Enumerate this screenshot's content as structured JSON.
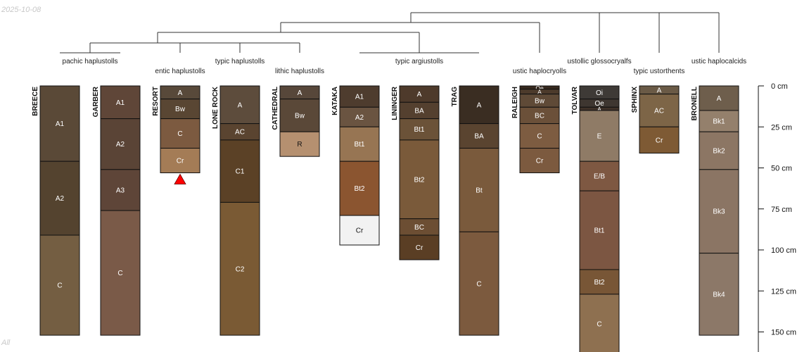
{
  "header_date": "2025-10-08",
  "footer_label": "All",
  "chart_data": {
    "type": "soil_profile_sketch",
    "depth_axis": {
      "units": "cm",
      "ticks": [
        0,
        25,
        50,
        75,
        100,
        125,
        150
      ],
      "tick_labels": [
        "0 cm",
        "25 cm",
        "50 cm",
        "75 cm",
        "100 cm",
        "125 cm",
        "150 cm"
      ],
      "max_depth": 150
    },
    "taxonomic_groups": [
      {
        "label": "pachic haplustolls"
      },
      {
        "label": "entic haplustolls"
      },
      {
        "label": "typic haplustolls"
      },
      {
        "label": "lithic haplustolls"
      },
      {
        "label": "typic argiustolls"
      },
      {
        "label": "ustic haplocryolls"
      },
      {
        "label": "ustollic glossocryalfs"
      },
      {
        "label": "typic ustorthents"
      },
      {
        "label": "ustic haplocalcids"
      }
    ],
    "profiles": [
      {
        "name": "BREECE",
        "group": "pachic haplustolls",
        "horizons": [
          {
            "name": "A1",
            "top": 0,
            "bottom": 46,
            "color": "#5a4937",
            "text": "light"
          },
          {
            "name": "A2",
            "top": 46,
            "bottom": 91,
            "color": "#54432f",
            "text": "light"
          },
          {
            "name": "C",
            "top": 91,
            "bottom": 152,
            "color": "#745e42",
            "text": "light"
          }
        ]
      },
      {
        "name": "GARBER",
        "group": "pachic haplustolls",
        "horizons": [
          {
            "name": "A1",
            "top": 0,
            "bottom": 20,
            "color": "#5f4638",
            "text": "light"
          },
          {
            "name": "A2",
            "top": 20,
            "bottom": 51,
            "color": "#5a4436",
            "text": "light"
          },
          {
            "name": "A3",
            "top": 51,
            "bottom": 76,
            "color": "#5e4538",
            "text": "light"
          },
          {
            "name": "C",
            "top": 76,
            "bottom": 152,
            "color": "#7a5a48",
            "text": "light"
          }
        ]
      },
      {
        "name": "RESORT",
        "group": "entic haplustolls",
        "marker": "red-triangle",
        "horizons": [
          {
            "name": "A",
            "top": 0,
            "bottom": 8,
            "color": "#58493a",
            "text": "light"
          },
          {
            "name": "Bw",
            "top": 8,
            "bottom": 20,
            "color": "#594633",
            "text": "light"
          },
          {
            "name": "C",
            "top": 20,
            "bottom": 38,
            "color": "#7c5a40",
            "text": "light"
          },
          {
            "name": "Cr",
            "top": 38,
            "bottom": 53,
            "color": "#a47c56",
            "text": "light"
          }
        ]
      },
      {
        "name": "LONE ROCK",
        "group": "typic haplustolls",
        "horizons": [
          {
            "name": "A",
            "top": 0,
            "bottom": 23,
            "color": "#5d4c3c",
            "text": "light"
          },
          {
            "name": "AC",
            "top": 23,
            "bottom": 33,
            "color": "#5a4430",
            "text": "light"
          },
          {
            "name": "C1",
            "top": 33,
            "bottom": 71,
            "color": "#5b4126",
            "text": "light"
          },
          {
            "name": "C2",
            "top": 71,
            "bottom": 152,
            "color": "#7a5a34",
            "text": "light"
          }
        ]
      },
      {
        "name": "CATHEDRAL",
        "group": "lithic haplustolls",
        "horizons": [
          {
            "name": "A",
            "top": 0,
            "bottom": 8,
            "color": "#57473a",
            "text": "light"
          },
          {
            "name": "Bw",
            "top": 8,
            "bottom": 28,
            "color": "#5a4838",
            "text": "light"
          },
          {
            "name": "R",
            "top": 28,
            "bottom": 43,
            "color": "#b59070",
            "text": "dark"
          }
        ]
      },
      {
        "name": "KATAKA",
        "group": "typic argiustolls",
        "horizons": [
          {
            "name": "A1",
            "top": 0,
            "bottom": 13,
            "color": "#4e3c2e",
            "text": "light"
          },
          {
            "name": "A2",
            "top": 13,
            "bottom": 25,
            "color": "#6a5441",
            "text": "light"
          },
          {
            "name": "Bt1",
            "top": 25,
            "bottom": 46,
            "color": "#977553",
            "text": "light"
          },
          {
            "name": "Bt2",
            "top": 46,
            "bottom": 79,
            "color": "#8b5530",
            "text": "light"
          },
          {
            "name": "Cr",
            "top": 79,
            "bottom": 97,
            "color": "#f2f2f2",
            "text": "dark"
          }
        ]
      },
      {
        "name": "LININGER",
        "group": "typic argiustolls",
        "horizons": [
          {
            "name": "A",
            "top": 0,
            "bottom": 10,
            "color": "#4e3a2b",
            "text": "light"
          },
          {
            "name": "BA",
            "top": 10,
            "bottom": 20,
            "color": "#54402f",
            "text": "light"
          },
          {
            "name": "Bt1",
            "top": 20,
            "bottom": 33,
            "color": "#6b5238",
            "text": "light"
          },
          {
            "name": "Bt2",
            "top": 33,
            "bottom": 81,
            "color": "#7a5a3a",
            "text": "light"
          },
          {
            "name": "BC",
            "top": 81,
            "bottom": 91,
            "color": "#6c4e33",
            "text": "light"
          },
          {
            "name": "Cr",
            "top": 91,
            "bottom": 106,
            "color": "#5a3e24",
            "text": "light"
          }
        ]
      },
      {
        "name": "TRAG",
        "group": "typic argiustolls",
        "horizons": [
          {
            "name": "A",
            "top": 0,
            "bottom": 23,
            "color": "#3a2d22",
            "text": "light"
          },
          {
            "name": "BA",
            "top": 23,
            "bottom": 38,
            "color": "#5a4430",
            "text": "light"
          },
          {
            "name": "Bt",
            "top": 38,
            "bottom": 89,
            "color": "#7a5a3c",
            "text": "light"
          },
          {
            "name": "C",
            "top": 89,
            "bottom": 152,
            "color": "#7c5a3e",
            "text": "light"
          }
        ]
      },
      {
        "name": "RALEIGH",
        "group": "ustic haplocryolls",
        "horizons": [
          {
            "name": "Oe",
            "top": 0,
            "bottom": 2,
            "color": "#37291e",
            "text": "light"
          },
          {
            "name": "A",
            "top": 2,
            "bottom": 5,
            "color": "#4c3a2b",
            "text": "light"
          },
          {
            "name": "Bw",
            "top": 5,
            "bottom": 13,
            "color": "#5f4a37",
            "text": "light"
          },
          {
            "name": "BC",
            "top": 13,
            "bottom": 23,
            "color": "#6b5039",
            "text": "light"
          },
          {
            "name": "C",
            "top": 23,
            "bottom": 38,
            "color": "#7d5c41",
            "text": "light"
          },
          {
            "name": "Cr",
            "top": 38,
            "bottom": 53,
            "color": "#7c5a3f",
            "text": "light"
          }
        ]
      },
      {
        "name": "TOLVAR",
        "group": "ustollic glossocryalfs",
        "horizons": [
          {
            "name": "Oi",
            "top": 0,
            "bottom": 8,
            "color": "#3e3a36",
            "text": "light"
          },
          {
            "name": "Oe",
            "top": 8,
            "bottom": 13,
            "color": "#3e3630",
            "text": "light"
          },
          {
            "name": "A",
            "top": 13,
            "bottom": 15,
            "color": "#3f3128",
            "text": "light"
          },
          {
            "name": "E",
            "top": 15,
            "bottom": 46,
            "color": "#8f7b66",
            "text": "light"
          },
          {
            "name": "E/B",
            "top": 46,
            "bottom": 64,
            "color": "#7e5842",
            "text": "light"
          },
          {
            "name": "Bt1",
            "top": 64,
            "bottom": 112,
            "color": "#7c5642",
            "text": "light"
          },
          {
            "name": "Bt2",
            "top": 112,
            "bottom": 127,
            "color": "#785636",
            "text": "light"
          },
          {
            "name": "C",
            "top": 127,
            "bottom": 163,
            "color": "#8e7050",
            "text": "light"
          }
        ]
      },
      {
        "name": "SPHINX",
        "group": "typic ustorthents",
        "horizons": [
          {
            "name": "A",
            "top": 0,
            "bottom": 5,
            "color": "#6a5a46",
            "text": "light"
          },
          {
            "name": "AC",
            "top": 5,
            "bottom": 25,
            "color": "#7d6547",
            "text": "light"
          },
          {
            "name": "Cr",
            "top": 25,
            "bottom": 41,
            "color": "#7e5a34",
            "text": "light"
          }
        ]
      },
      {
        "name": "BRONELL",
        "group": "ustic haplocalcids",
        "horizons": [
          {
            "name": "A",
            "top": 0,
            "bottom": 15,
            "color": "#6e5e4c",
            "text": "light"
          },
          {
            "name": "Bk1",
            "top": 15,
            "bottom": 28,
            "color": "#94806c",
            "text": "light"
          },
          {
            "name": "Bk2",
            "top": 28,
            "bottom": 51,
            "color": "#8c7664",
            "text": "light"
          },
          {
            "name": "Bk3",
            "top": 51,
            "bottom": 102,
            "color": "#8b7564",
            "text": "light"
          },
          {
            "name": "Bk4",
            "top": 102,
            "bottom": 152,
            "color": "#8c7868",
            "text": "light"
          }
        ]
      }
    ]
  }
}
